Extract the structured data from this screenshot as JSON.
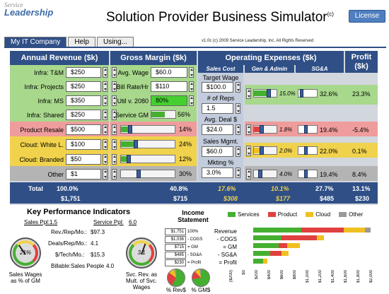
{
  "header": {
    "logo_top": "Service",
    "logo_bottom": "Leadership",
    "title": "Solution Provider Business Simulator",
    "title_mark": "(c)",
    "license_label": "License",
    "version": "v1.0c (c) 2009 Service Leadership, Inc. All Rights Reserved"
  },
  "tabs": [
    {
      "label": "My IT Company"
    },
    {
      "label": "Help"
    },
    {
      "label": "Using..."
    }
  ],
  "columns": {
    "revenue": "Annual Revenue ($k)",
    "margin": "Gross Margin ($k)",
    "opex": "Operating Expenses ($k)",
    "profit": "Profit ($k)",
    "sub_sales": "Sales Cost",
    "sub_ga": "Gen & Admin",
    "sub_sga": "SG&A"
  },
  "rows": [
    {
      "label": "Infra: T&M",
      "rev": "$250",
      "gm": "",
      "sga_pct": "",
      "profit": "",
      "gm_fill": 0
    },
    {
      "label": "Infra: Projects",
      "rev": "$250",
      "gm": "",
      "sga_pct": "",
      "profit": "",
      "gm_fill": 0
    },
    {
      "label": "Infra: MS",
      "rev": "$350",
      "gm": "",
      "sga_pct": "32.6%",
      "profit": "23.3%",
      "ga_pct": "15.0%",
      "gm_fill": 0
    },
    {
      "label": "Infra: Shared",
      "rev": "$250",
      "gm": "56%",
      "sga_pct": "",
      "profit": "",
      "gm_fill": 0.56
    },
    {
      "label": "Product Resale",
      "rev": "$500",
      "gm": "14%",
      "ga_pct": "1.8%",
      "sga_pct": "19.4%",
      "profit": "-5.4%",
      "gm_fill": 0.14
    },
    {
      "label": "Cloud: White L.",
      "rev": "$100",
      "gm": "24%",
      "ga_pct": "2.0%",
      "sga_pct": "22.0%",
      "profit": "0.1%",
      "gm_fill": 0.24
    },
    {
      "label": "Cloud: Branded",
      "rev": "$50",
      "gm": "",
      "sga_pct": "",
      "profit": "",
      "gm_fill": 0
    },
    {
      "label": "Other",
      "rev": "$1",
      "gm": "30%",
      "ga_pct": "4.0%",
      "sga_pct": "19.4%",
      "profit": "8.4%",
      "gm_fill": 0
    }
  ],
  "margin_inputs": {
    "avg_wage_label": "Avg. Wage",
    "avg_wage": "$60.0",
    "bill_rate_label": "Bill Rate/Hr",
    "bill_rate": "$110",
    "util_label": "Util v. 2080",
    "util": "80%",
    "service_gm_label": "Service GM",
    "cloud_branded_gm": "12%"
  },
  "opex_inputs": {
    "target_wage_label": "Target Wage",
    "target_wage": "$100.0",
    "reps_label": "# of Reps",
    "reps": "1.5",
    "avg_deal_label": "Avg. Deal $",
    "avg_deal": "$24.0",
    "sales_mgmt_label": "Sales Mgmt.",
    "sales_mgmt": "$60.0",
    "mkting_label": "Mkting %",
    "mkting": "3.0%"
  },
  "totals": {
    "label": "Total",
    "rev_pct": "100.0%",
    "rev_amt": "$1,751",
    "gm_pct": "40.8%",
    "gm_amt": "$715",
    "sales_pct": "17.6%",
    "sales_amt": "$308",
    "ga_pct": "10.1%",
    "ga_amt": "$177",
    "sga_pct": "27.7%",
    "sga_amt": "$485",
    "profit_pct": "13.1%",
    "profit_amt": "$230"
  },
  "kpi": {
    "title": "Key Performance Indicators",
    "sales_ppl_label": "Sales Ppl:",
    "sales_ppl": "1.5",
    "service_ppl_label": "Service Ppl:",
    "service_ppl": "6.0",
    "rev_rep_label": "Rev./Rep/Mo.:",
    "rev_rep": "$97.3",
    "deals_label": "Deals/Rep/Mo.:",
    "deals": "4.1",
    "tech_label": "$/Tech/Mo.:",
    "tech": "$15.3",
    "billable_label": "Billable:Sales People",
    "billable": "4.0",
    "gauge1_value": "21%",
    "gauge1_caption": "Sales Wages as % of GM",
    "gauge2_value": "3.1",
    "gauge2_caption": "Svc. Rev. as Mult. of Svc. Wages"
  },
  "income": {
    "title": "Income Statement",
    "values": [
      "$1,751",
      "$1,036",
      "$715",
      "$485",
      "$230"
    ],
    "ops": [
      "100%",
      "- COGS",
      "= GM",
      "- SG&A",
      "= Profit"
    ],
    "labels": [
      "Revenue",
      "- COGS",
      "= GM",
      "- SG&A",
      "= Profit"
    ],
    "pie1_caption": "% Rev$",
    "pie2_caption": "% GM$",
    "legend": [
      {
        "name": "Services",
        "color": "#45b030"
      },
      {
        "name": "Product",
        "color": "#e04040"
      },
      {
        "name": "Cloud",
        "color": "#f0c020"
      },
      {
        "name": "Other",
        "color": "#999999"
      }
    ],
    "axis": [
      "($200)",
      "$0",
      "$200",
      "$400",
      "$600",
      "$800",
      "$1,000",
      "$1,200",
      "$1,400",
      "$1,600",
      "$1,800",
      "$2,000"
    ]
  },
  "colors": {
    "navy": "#2f4f86",
    "green_band": "#a8d88c",
    "red_band": "#ef9c9c",
    "yellow_band": "#f0d24c",
    "gray_band": "#b4b4b4"
  }
}
